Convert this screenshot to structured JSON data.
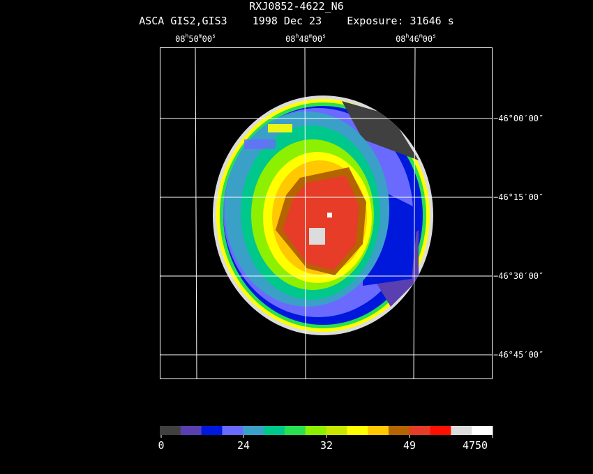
{
  "header": {
    "title": "RXJ0852-4622_N6",
    "subtitle": "ASCA GIS2,GIS3    1998 Dec 23    Exposure: 31646 s"
  },
  "ra_labels": [
    {
      "h": "08",
      "m": "50",
      "s": "00"
    },
    {
      "h": "08",
      "m": "48",
      "s": "00"
    },
    {
      "h": "08",
      "m": "46",
      "s": "00"
    }
  ],
  "dec_labels": [
    "−46°00′00″",
    "−46°15′00″",
    "−46°30′00″",
    "−46°45′00″"
  ],
  "colorbar": {
    "colors": [
      "#404040",
      "#5a3fb0",
      "#0018dc",
      "#6a6aff",
      "#3aa0c8",
      "#00c88c",
      "#28e050",
      "#8cf000",
      "#c8e600",
      "#ffff00",
      "#ffc800",
      "#b46400",
      "#e63c28",
      "#ff1000",
      "#dcdcdc",
      "#ffffff"
    ],
    "labels": [
      "0",
      "24",
      "32",
      "49",
      "4750"
    ]
  }
}
